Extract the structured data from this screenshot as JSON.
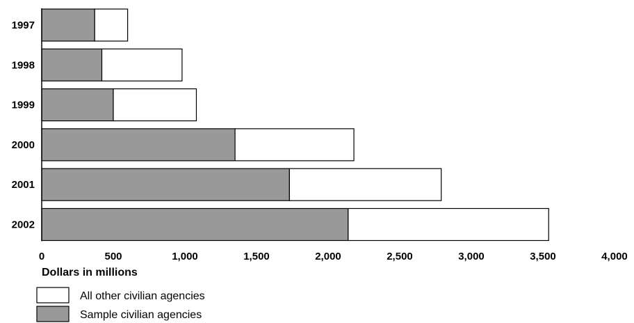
{
  "chart_data": {
    "type": "bar",
    "orientation": "horizontal",
    "stacked": true,
    "categories": [
      "1997",
      "1998",
      "1999",
      "2000",
      "2001",
      "2002"
    ],
    "series": [
      {
        "name": "Sample civilian agencies",
        "values": [
          370,
          420,
          500,
          1350,
          1730,
          2140
        ],
        "color": "#999999"
      },
      {
        "name": "All other civilian agencies",
        "values": [
          230,
          560,
          580,
          830,
          1060,
          1400
        ],
        "color": "#ffffff"
      }
    ],
    "x_ticks": [
      "0",
      "500",
      "1,000",
      "1,500",
      "2,000",
      "2,500",
      "3,000",
      "3,500",
      "4,000"
    ],
    "xlabel": "Dollars in millions",
    "xlim": [
      0,
      4000
    ],
    "grid": false,
    "legend_position": "bottom-left"
  }
}
